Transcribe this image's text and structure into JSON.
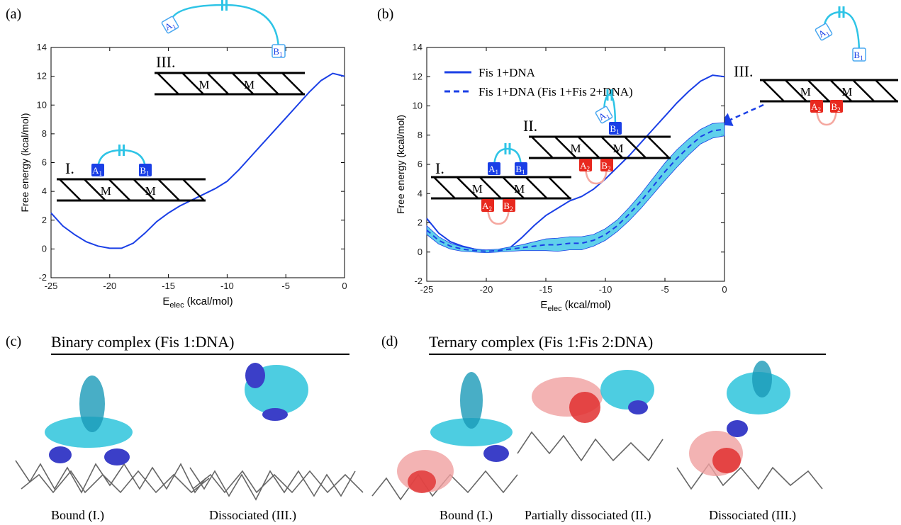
{
  "panels": {
    "a": "(a)",
    "b": "(b)",
    "c": "(c)",
    "d": "(d)"
  },
  "chart_data": [
    {
      "type": "line",
      "y_label": "Free energy (kcal/mol)",
      "x_label": {
        "main": "E",
        "sub": "elec",
        "unit": "(kcal/mol)"
      },
      "x": [
        -25,
        -24,
        -23,
        -22,
        -21,
        -20,
        -19,
        -18,
        -17,
        -16,
        -15,
        -14,
        -13,
        -12,
        -11,
        -10,
        -9,
        -8,
        -7,
        -6,
        -5,
        -4,
        -3,
        -2,
        -1,
        0
      ],
      "series": [
        {
          "color": "#1a3fe6",
          "linestyle": "solid",
          "values": [
            2.5,
            1.6,
            1.0,
            0.5,
            0.2,
            0.05,
            0.05,
            0.4,
            1.1,
            1.9,
            2.5,
            3.0,
            3.4,
            3.8,
            4.2,
            4.7,
            5.5,
            6.4,
            7.3,
            8.2,
            9.1,
            10.0,
            10.9,
            11.7,
            12.2,
            12.0
          ]
        }
      ],
      "xlim": [
        -25,
        0
      ],
      "ylim": [
        -2,
        14
      ],
      "xticks": [
        -25,
        -20,
        -15,
        -10,
        -5,
        0
      ],
      "yticks": [
        -2,
        0,
        2,
        4,
        6,
        8,
        10,
        12,
        14
      ],
      "cartoons": [
        {
          "stage": "III.",
          "m": [
            "M",
            "M"
          ],
          "top": [
            {
              "letter": "A",
              "sub": "1"
            },
            {
              "letter": "B",
              "sub": "1"
            }
          ],
          "bottom": []
        },
        {
          "stage": "I.",
          "m": [
            "M",
            "M"
          ],
          "top": [
            {
              "letter": "A",
              "sub": "1"
            },
            {
              "letter": "B",
              "sub": "1"
            }
          ],
          "bottom": []
        }
      ]
    },
    {
      "type": "line",
      "y_label": "Free energy (kcal/mol)",
      "x_label": {
        "main": "E",
        "sub": "elec",
        "unit": "(kcal/mol)"
      },
      "x": [
        -25,
        -24,
        -23,
        -22,
        -21,
        -20,
        -19,
        -18,
        -17,
        -16,
        -15,
        -14,
        -13,
        -12,
        -11,
        -10,
        -9,
        -8,
        -7,
        -6,
        -5,
        -4,
        -3,
        -2,
        -1,
        0
      ],
      "series": [
        {
          "name": "Fis 1+DNA",
          "color": "#1a3fe6",
          "linestyle": "solid",
          "values": [
            2.3,
            1.3,
            0.7,
            0.4,
            0.2,
            0.1,
            0.1,
            0.3,
            1.0,
            1.8,
            2.5,
            3.0,
            3.5,
            3.8,
            4.3,
            5.0,
            5.8,
            6.6,
            7.5,
            8.4,
            9.3,
            10.2,
            11.0,
            11.7,
            12.1,
            12.0
          ]
        },
        {
          "name": "Fis 1+DNA (Fis 1+Fis 2+DNA)",
          "color": "#1a3fe6",
          "linestyle": "dashed",
          "band_color": "#44c8e8",
          "values": [
            1.5,
            0.8,
            0.4,
            0.2,
            0.1,
            0.05,
            0.1,
            0.2,
            0.3,
            0.4,
            0.5,
            0.5,
            0.6,
            0.6,
            0.8,
            1.2,
            1.8,
            2.6,
            3.5,
            4.5,
            5.5,
            6.4,
            7.2,
            7.9,
            8.3,
            8.4
          ],
          "errors": [
            0.3,
            0.25,
            0.2,
            0.15,
            0.1,
            0.1,
            0.1,
            0.15,
            0.2,
            0.3,
            0.4,
            0.45,
            0.45,
            0.45,
            0.4,
            0.4,
            0.4,
            0.45,
            0.5,
            0.55,
            0.6,
            0.6,
            0.55,
            0.5,
            0.5,
            0.45
          ]
        }
      ],
      "legend": "upper left",
      "xlim": [
        -25,
        0
      ],
      "ylim": [
        -2,
        14
      ],
      "xticks": [
        -25,
        -20,
        -15,
        -10,
        -5,
        0
      ],
      "yticks": [
        -2,
        0,
        2,
        4,
        6,
        8,
        10,
        12,
        14
      ],
      "cartoons": [
        {
          "stage": "I.",
          "m": [
            "M",
            "M"
          ],
          "top": [
            {
              "letter": "A",
              "sub": "1"
            },
            {
              "letter": "B",
              "sub": "1"
            }
          ],
          "bottom": [
            {
              "letter": "A",
              "sub": "2"
            },
            {
              "letter": "B",
              "sub": "2"
            }
          ]
        },
        {
          "stage": "II.",
          "m": [
            "M",
            "M"
          ],
          "top": [
            {
              "letter": "A",
              "sub": "1"
            },
            {
              "letter": "B",
              "sub": "1"
            }
          ],
          "bottom": [
            {
              "letter": "A",
              "sub": "2"
            },
            {
              "letter": "B",
              "sub": "2"
            }
          ]
        },
        {
          "stage": "III.",
          "m": [
            "M",
            "M"
          ],
          "top": [
            {
              "letter": "A",
              "sub": "1"
            },
            {
              "letter": "B",
              "sub": "1"
            }
          ],
          "bottom": [
            {
              "letter": "A",
              "sub": "2"
            },
            {
              "letter": "B",
              "sub": "2"
            }
          ]
        }
      ]
    }
  ],
  "complexes": [
    {
      "title": "Binary complex (Fis 1:DNA)",
      "captions": [
        "Bound (I.)",
        "Dissociated (III.)"
      ]
    },
    {
      "title": "Ternary complex (Fis 1:Fis 2:DNA)",
      "captions": [
        "Bound (I.)",
        "Partially dissociated (II.)",
        "Dissociated (III.)"
      ]
    }
  ]
}
